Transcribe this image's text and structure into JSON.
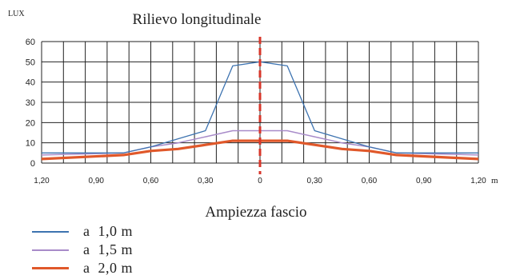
{
  "chart_data": {
    "type": "line",
    "title": "Rilievo longitudinale",
    "ylabel": "LUX",
    "xlabel": "m",
    "subtitle": "Ampiezza fascio",
    "ylim": [
      0,
      60
    ],
    "yticks": [
      0,
      10,
      20,
      30,
      40,
      50,
      60
    ],
    "xlim": [
      -1.2,
      1.2
    ],
    "xtick_values": [
      -1.2,
      -0.9,
      -0.6,
      -0.3,
      0,
      0.3,
      0.6,
      0.9,
      1.2
    ],
    "xtick_labels": [
      "1,20",
      "0,90",
      "0,60",
      "0,30",
      "0",
      "0,30",
      "0,60",
      "0,90",
      "1,20"
    ],
    "grid": true,
    "center_marker": 0,
    "series": [
      {
        "name": "a  1,0 m",
        "color": "#3d73b0",
        "x": [
          -1.2,
          -0.75,
          -0.6,
          -0.45,
          -0.3,
          -0.15,
          0,
          0.15,
          0.3,
          0.45,
          0.6,
          0.75,
          1.2
        ],
        "y": [
          5,
          5,
          8,
          12,
          16,
          48,
          50,
          48,
          16,
          12,
          8,
          5,
          5
        ]
      },
      {
        "name": "a  1,5 m",
        "color": "#a88bc9",
        "x": [
          -1.2,
          -0.75,
          -0.6,
          -0.45,
          -0.3,
          -0.15,
          0,
          0.15,
          0.3,
          0.45,
          0.6,
          0.75,
          1.2
        ],
        "y": [
          4,
          5,
          8,
          10,
          13,
          16,
          16,
          16,
          13,
          10,
          8,
          5,
          4
        ]
      },
      {
        "name": "a  2,0 m",
        "color": "#e0582a",
        "x": [
          -1.2,
          -0.75,
          -0.6,
          -0.45,
          -0.3,
          -0.15,
          0,
          0.15,
          0.3,
          0.45,
          0.6,
          0.75,
          1.2
        ],
        "y": [
          2,
          4,
          6,
          7,
          9,
          11,
          11,
          11,
          9,
          7,
          6,
          4,
          2
        ]
      }
    ]
  },
  "colors": {
    "grid": "#222222",
    "center_line": "#d8362a",
    "text": "#222222"
  }
}
